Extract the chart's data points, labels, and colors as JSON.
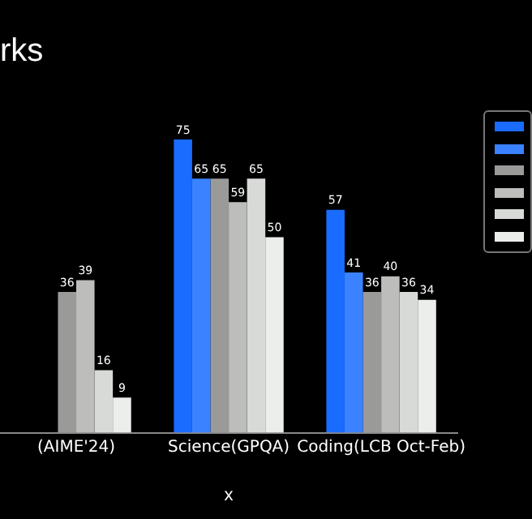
{
  "chart_data": {
    "type": "bar",
    "title": "rks",
    "xlabel": "x",
    "categories": [
      "(AIME'24)",
      "Science(GPQA)",
      "Coding(LCB Oct-Feb)"
    ],
    "series": [
      {
        "color": "#1a6bff",
        "values": [
          null,
          75,
          57
        ]
      },
      {
        "color": "#3a82ff",
        "values": [
          null,
          65,
          41
        ]
      },
      {
        "color": "#9a9a98",
        "values": [
          36,
          65,
          36
        ]
      },
      {
        "color": "#bdbdbb",
        "values": [
          39,
          59,
          40
        ]
      },
      {
        "color": "#d8dad7",
        "values": [
          16,
          65,
          36
        ]
      },
      {
        "color": "#eceeeb",
        "values": [
          9,
          50,
          34
        ]
      }
    ],
    "data_labels": true
  }
}
